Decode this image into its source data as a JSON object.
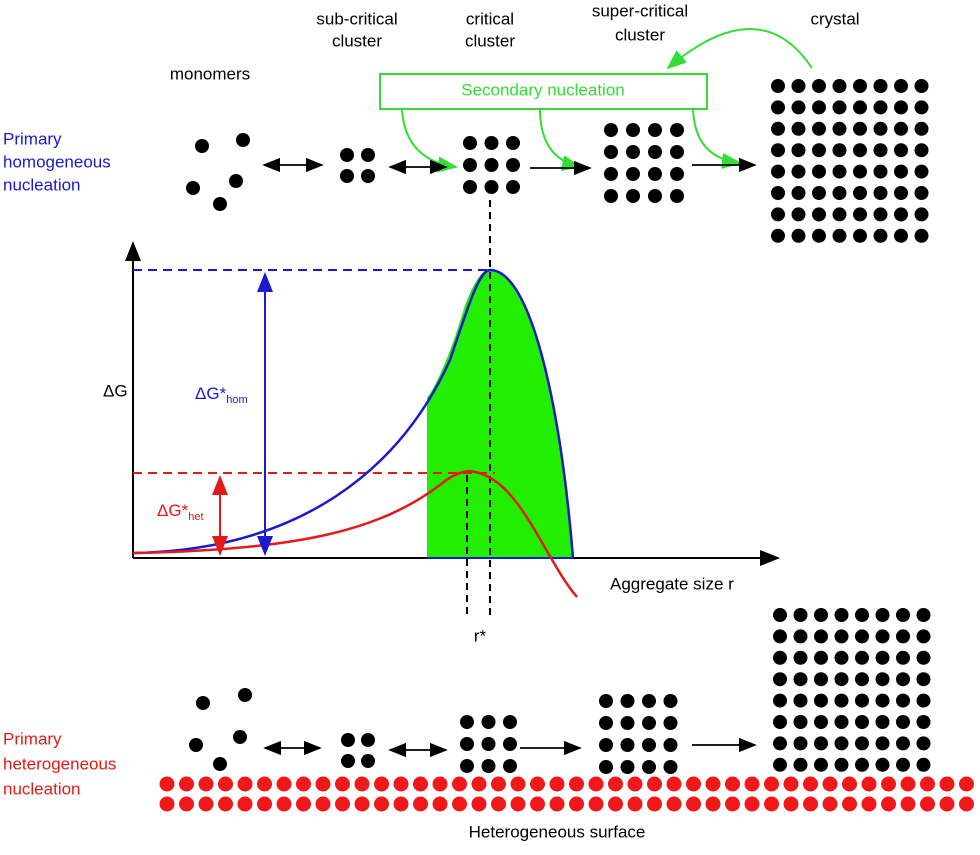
{
  "labels": {
    "monomers": "monomers",
    "sub_critical": [
      "sub-critical",
      "cluster"
    ],
    "critical": [
      "critical",
      "cluster"
    ],
    "super_critical": [
      "super-critical",
      "cluster"
    ],
    "crystal": "crystal",
    "secondary": "Secondary nucleation",
    "homogeneous": [
      "Primary",
      "homogeneous",
      "nucleation"
    ],
    "heterogeneous": [
      "Primary",
      "heterogeneous",
      "nucleation"
    ],
    "surface": "Heterogeneous surface"
  },
  "graph": {
    "y_label": "ΔG",
    "x_label": "Aggregate size r",
    "r_star": "r*",
    "dg_hom": {
      "main": "ΔG*",
      "sub": "hom"
    },
    "dg_het": {
      "main": "ΔG*",
      "sub": "het"
    }
  }
}
